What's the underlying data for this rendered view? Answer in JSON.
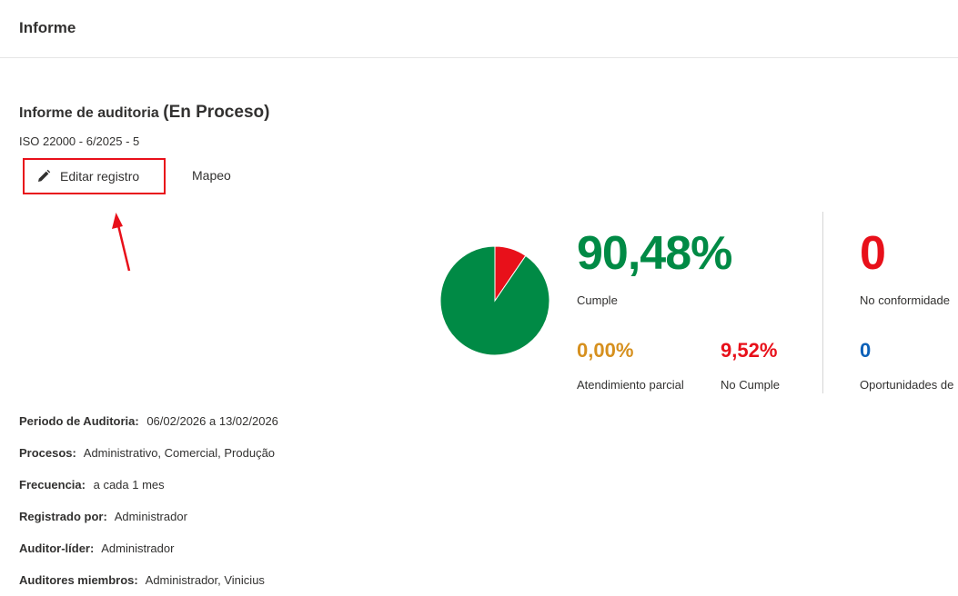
{
  "header": {
    "title": "Informe"
  },
  "report": {
    "title": "Informe de auditoria",
    "status": "(En Proceso)",
    "subtitle": "ISO 22000 - 6/2025 - 5"
  },
  "actions": {
    "edit_label": "Editar registro",
    "map_label": "Mapeo"
  },
  "stats": {
    "main_value": "90,48%",
    "main_label": "Cumple",
    "partial_value": "0,00%",
    "partial_label": "Atendimiento parcial",
    "fail_value": "9,52%",
    "fail_label": "No Cumple",
    "nc_value": "0",
    "nc_label": "No conformidade",
    "opp_value": "0",
    "opp_label": "Oportunidades de"
  },
  "pie": {
    "values": [
      90.48,
      9.52
    ],
    "colors": [
      "#008a45",
      "#e8101a"
    ]
  },
  "colors": {
    "green": "#008a45",
    "red": "#e8101a",
    "amber": "#d6901e",
    "blue": "#0a60b8"
  },
  "details": [
    {
      "key": "Periodo de Auditoria:",
      "value": "06/02/2026 a 13/02/2026"
    },
    {
      "key": "Procesos:",
      "value": "Administrativo, Comercial, Produção"
    },
    {
      "key": "Frecuencia:",
      "value": "a cada 1 mes"
    },
    {
      "key": "Registrado por:",
      "value": "Administrador"
    },
    {
      "key": "Auditor-líder:",
      "value": "Administrador"
    },
    {
      "key": "Auditores miembros:",
      "value": "Administrador, Vinicius"
    }
  ]
}
